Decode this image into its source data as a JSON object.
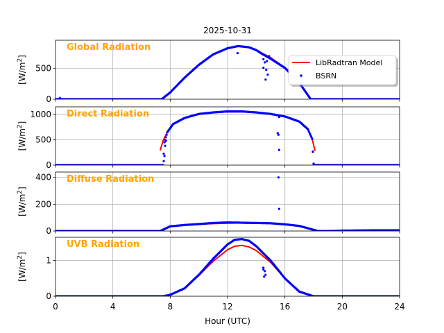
{
  "chart_data": {
    "type": "line",
    "title": "2025-10-31",
    "xlabel": "Hour (UTC)",
    "xlim": [
      0,
      24
    ],
    "xticks": [
      "0",
      "4",
      "8",
      "12",
      "16",
      "20",
      "24"
    ],
    "grid": true,
    "legend": {
      "placement": "top-right of first panel",
      "entries": [
        {
          "name": "LibRadtran Model",
          "color": "#ff0000",
          "style": "line"
        },
        {
          "name": "BSRN",
          "color": "#0000ff",
          "style": "points"
        }
      ]
    },
    "panels": [
      {
        "label": "Global Radiation",
        "ylabel_base": "[W/m",
        "ylabel_sup": "2",
        "ylabel_end": "]",
        "ylim": [
          0,
          960
        ],
        "yticks": [
          0,
          500
        ],
        "ytick_labels": [
          "0",
          "500"
        ],
        "model": {
          "x": [
            7.4,
            8,
            9,
            10,
            11,
            12,
            12.75,
            13.5,
            14,
            15,
            16,
            17,
            17.8
          ],
          "y": [
            0,
            110,
            350,
            560,
            730,
            830,
            860,
            840,
            800,
            680,
            510,
            270,
            0
          ]
        },
        "bsrn": {
          "x": [
            0,
            1,
            2,
            3,
            4,
            5,
            6,
            7,
            7.4,
            8,
            9,
            10,
            11,
            12,
            12.75,
            13.5,
            14,
            14.4,
            15,
            16,
            17,
            17.8,
            18.5,
            20,
            21,
            22,
            23,
            24
          ],
          "y": [
            0,
            0,
            0,
            0,
            0,
            0,
            0,
            0,
            0,
            110,
            350,
            560,
            730,
            830,
            865,
            845,
            800,
            740,
            660,
            510,
            270,
            0,
            0,
            0,
            0,
            0,
            0,
            0
          ],
          "outliers_x": [
            0.3,
            12.7,
            14.5,
            14.6,
            14.7,
            14.8,
            14.5,
            14.65,
            14.75,
            14.9
          ],
          "outliers_y": [
            20,
            750,
            650,
            600,
            480,
            400,
            510,
            320,
            620,
            700
          ]
        }
      },
      {
        "label": "Direct Radiation",
        "ylabel_base": "[W/m",
        "ylabel_sup": "2",
        "ylabel_end": "]",
        "ylim": [
          0,
          1150
        ],
        "yticks": [
          0,
          500,
          1000
        ],
        "ytick_labels": [
          "0",
          "500",
          "1000"
        ],
        "model": {
          "x": [
            7.3,
            7.5,
            7.8,
            8.2,
            9,
            10,
            11,
            12,
            13,
            14,
            15,
            16,
            17,
            17.6,
            17.9,
            18.1
          ],
          "y": [
            290,
            480,
            650,
            810,
            930,
            1010,
            1040,
            1050,
            1050,
            1040,
            1010,
            960,
            860,
            710,
            520,
            280
          ]
        },
        "bsrn": {
          "x": [
            0,
            2,
            4,
            6,
            7.4,
            7.5,
            7.6,
            7.8,
            8.2,
            9,
            10,
            11,
            12,
            13,
            14,
            15,
            16,
            17,
            17.6,
            17.9,
            18,
            19,
            20,
            22,
            24
          ],
          "y": [
            0,
            0,
            0,
            0,
            0,
            0,
            450,
            650,
            810,
            930,
            1010,
            1040,
            1060,
            1060,
            1040,
            1010,
            960,
            860,
            710,
            520,
            0,
            0,
            0,
            0,
            0
          ],
          "outliers_x": [
            7.55,
            7.6,
            7.65,
            7.7,
            15.5,
            15.55,
            15.6,
            15.6,
            17.95,
            18.0
          ],
          "outliers_y": [
            80,
            180,
            380,
            480,
            630,
            600,
            300,
            950,
            270,
            30
          ]
        }
      },
      {
        "label": "Diffuse Radiation",
        "ylabel_base": "[W/m",
        "ylabel_sup": "2",
        "ylabel_end": "]",
        "ylim": [
          0,
          440
        ],
        "yticks": [
          0,
          200,
          400
        ],
        "ytick_labels": [
          "0",
          "200",
          "400"
        ],
        "model": {
          "x": [
            7.3,
            8,
            9,
            10,
            11,
            12,
            13,
            14,
            15,
            16,
            17,
            17.8,
            18.3
          ],
          "y": [
            0,
            35,
            45,
            50,
            55,
            58,
            60,
            60,
            58,
            50,
            38,
            15,
            0
          ]
        },
        "bsrn": {
          "x": [
            0,
            2,
            4,
            6,
            7.3,
            8,
            9,
            10,
            11,
            12,
            13,
            14,
            15,
            16,
            17,
            17.8,
            18.3,
            19,
            20,
            22,
            24
          ],
          "y": [
            0,
            0,
            0,
            0,
            0,
            35,
            45,
            52,
            60,
            64,
            62,
            60,
            58,
            50,
            38,
            15,
            0,
            0,
            3,
            5,
            5
          ],
          "outliers_x": [
            15.55,
            15.6
          ],
          "outliers_y": [
            400,
            165
          ]
        }
      },
      {
        "label": "UVB Radiation",
        "ylabel_base": "[W/m",
        "ylabel_sup": "2",
        "ylabel_end": "]",
        "ylim": [
          0,
          1.65
        ],
        "yticks": [
          0,
          1
        ],
        "ytick_labels": [
          "0",
          "1"
        ],
        "model": {
          "x": [
            7.5,
            8,
            9,
            10,
            11,
            12,
            12.5,
            13,
            13.5,
            14,
            15,
            16,
            17,
            18
          ],
          "y": [
            0,
            0.04,
            0.22,
            0.58,
            0.98,
            1.3,
            1.4,
            1.42,
            1.38,
            1.28,
            0.95,
            0.5,
            0.13,
            0
          ]
        },
        "bsrn": {
          "x": [
            0,
            2,
            4,
            6,
            7.5,
            8,
            9,
            10,
            11,
            12,
            12.5,
            13,
            13.5,
            14,
            15,
            16,
            17,
            18,
            19,
            20,
            22,
            24
          ],
          "y": [
            0,
            0,
            0,
            0,
            0,
            0.04,
            0.22,
            0.6,
            1.05,
            1.45,
            1.58,
            1.6,
            1.55,
            1.4,
            1.0,
            0.5,
            0.13,
            0,
            0,
            0,
            0,
            0
          ],
          "outliers_x": [
            14.5,
            14.55,
            14.6,
            14.65,
            14.5
          ],
          "outliers_y": [
            0.8,
            0.55,
            0.7,
            0.6,
            0.75
          ]
        }
      }
    ]
  }
}
